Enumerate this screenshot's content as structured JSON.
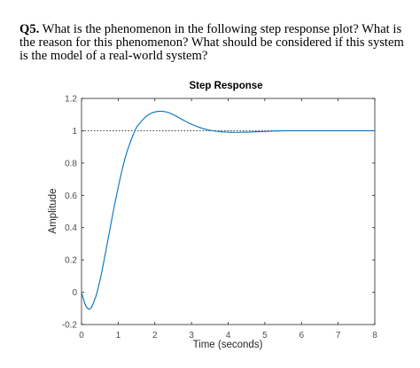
{
  "question": {
    "number": "Q5.",
    "text": " What is the phenomenon in the following step response plot? What is the reason for this phenomenon? What should be considered if this system is the model of a real-world system?"
  },
  "chart_data": {
    "type": "line",
    "title": "Step Response",
    "xlabel": "Time (seconds)",
    "ylabel": "Amplitude",
    "xlim": [
      0,
      8
    ],
    "ylim": [
      -0.2,
      1.2
    ],
    "xticks": [
      "0",
      "1",
      "2",
      "3",
      "4",
      "5",
      "6",
      "7",
      "8"
    ],
    "yticks": [
      "-0.2",
      "0",
      "0.2",
      "0.4",
      "0.6",
      "0.8",
      "1",
      "1.2"
    ],
    "reference_line": {
      "y": 1,
      "style": "dotted"
    },
    "grid": false,
    "series": [
      {
        "color": "#0072BD",
        "x": [
          0,
          0.05,
          0.1,
          0.15,
          0.2,
          0.25,
          0.3,
          0.35,
          0.4,
          0.5,
          0.6,
          0.7,
          0.8,
          0.9,
          1.0,
          1.1,
          1.2,
          1.3,
          1.4,
          1.5,
          1.6,
          1.7,
          1.8,
          1.9,
          2.0,
          2.1,
          2.2,
          2.3,
          2.4,
          2.5,
          2.6,
          2.7,
          2.8,
          2.9,
          3.0,
          3.2,
          3.4,
          3.6,
          3.8,
          4.0,
          4.2,
          4.4,
          4.6,
          4.8,
          5.0,
          5.2,
          5.4,
          5.6,
          5.8,
          6.0,
          6.5,
          7.0,
          7.5,
          8.0
        ],
        "y": [
          0,
          -0.04,
          -0.075,
          -0.095,
          -0.105,
          -0.1,
          -0.08,
          -0.05,
          -0.02,
          0.07,
          0.18,
          0.3,
          0.42,
          0.54,
          0.65,
          0.75,
          0.84,
          0.91,
          0.97,
          1.02,
          1.05,
          1.075,
          1.095,
          1.108,
          1.116,
          1.12,
          1.12,
          1.117,
          1.11,
          1.1,
          1.088,
          1.075,
          1.063,
          1.051,
          1.04,
          1.022,
          1.008,
          0.999,
          0.994,
          0.991,
          0.99,
          0.991,
          0.992,
          0.994,
          0.996,
          0.998,
          0.999,
          1.0,
          1.0,
          1.0,
          1.0,
          1.0,
          1.0,
          1.0
        ]
      }
    ]
  }
}
